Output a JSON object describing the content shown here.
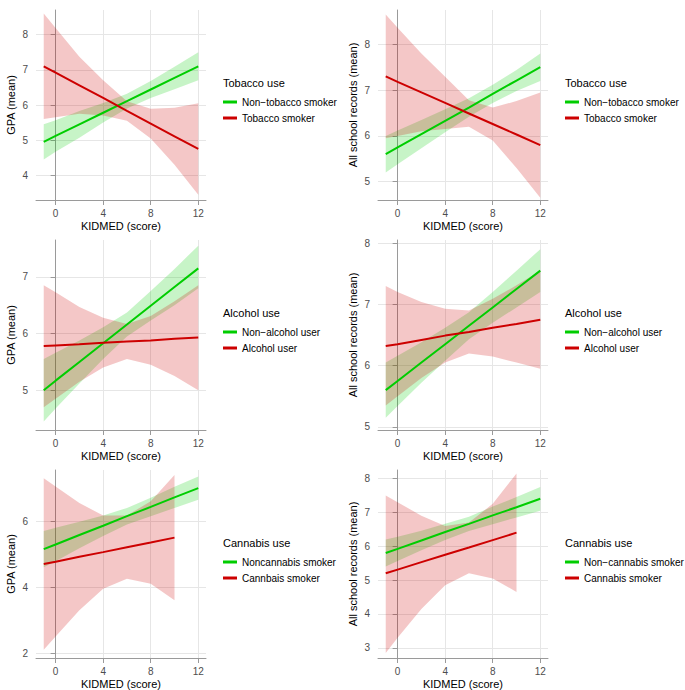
{
  "chart_data": [
    {
      "type": "line",
      "x_label": "KIDMED (score)",
      "y_label": "GPA (mean)",
      "legend_title": "Tobacco use",
      "legend": "right",
      "grid": true,
      "xlim": [
        -1.65,
        12.65
      ],
      "xticks": [
        0,
        4,
        8,
        12
      ],
      "ylim": [
        3.3,
        8.7
      ],
      "yticks": [
        4,
        5,
        6,
        7,
        8
      ],
      "x": [
        -1,
        0,
        2,
        4,
        6,
        8,
        10,
        12
      ],
      "series": [
        {
          "name": "Non−tobacco smoker",
          "color": "#00CD00",
          "values": [
            4.95,
            5.12,
            5.45,
            5.78,
            6.11,
            6.44,
            6.77,
            7.1
          ],
          "lower": [
            4.45,
            4.67,
            5.07,
            5.5,
            5.9,
            6.2,
            6.45,
            6.7
          ],
          "upper": [
            5.45,
            5.57,
            5.83,
            6.06,
            6.32,
            6.68,
            7.09,
            7.5
          ]
        },
        {
          "name": "Tobacco smoker",
          "color": "#CD0000",
          "values": [
            7.1,
            6.92,
            6.56,
            6.2,
            5.83,
            5.47,
            5.11,
            4.75
          ],
          "lower": [
            5.6,
            5.65,
            5.75,
            5.7,
            5.55,
            5.05,
            4.3,
            3.45
          ],
          "upper": [
            8.6,
            8.19,
            7.37,
            6.7,
            6.11,
            5.89,
            5.92,
            6.05
          ]
        }
      ]
    },
    {
      "type": "line",
      "x_label": "KIDMED (score)",
      "y_label": "All school records (mean)",
      "legend_title": "Tobacco use",
      "legend": "right",
      "grid": true,
      "xlim": [
        -1.65,
        12.65
      ],
      "xticks": [
        0,
        4,
        8,
        12
      ],
      "ylim": [
        4.6,
        8.75
      ],
      "yticks": [
        5,
        6,
        7,
        8
      ],
      "x": [
        -1,
        0,
        2,
        4,
        6,
        8,
        10,
        12
      ],
      "series": [
        {
          "name": "Non−tobacco smoker",
          "color": "#00CD00",
          "values": [
            5.6,
            5.75,
            6.04,
            6.33,
            6.62,
            6.92,
            7.21,
            7.5
          ],
          "lower": [
            5.2,
            5.38,
            5.73,
            6.08,
            6.42,
            6.72,
            6.98,
            7.2
          ],
          "upper": [
            6.0,
            6.12,
            6.35,
            6.58,
            6.82,
            7.12,
            7.44,
            7.8
          ]
        },
        {
          "name": "Tobacco smoker",
          "color": "#CD0000",
          "values": [
            7.3,
            7.18,
            6.95,
            6.72,
            6.49,
            6.26,
            6.03,
            5.8
          ],
          "lower": [
            5.95,
            6.0,
            6.1,
            6.15,
            6.2,
            5.9,
            5.3,
            4.65
          ],
          "upper": [
            8.65,
            8.36,
            7.8,
            7.29,
            6.78,
            6.62,
            6.76,
            6.95
          ]
        }
      ]
    },
    {
      "type": "line",
      "x_label": "KIDMED (score)",
      "y_label": "GPA (mean)",
      "legend_title": "Alcohol use",
      "legend": "right",
      "grid": true,
      "xlim": [
        -1.65,
        12.65
      ],
      "xticks": [
        0,
        4,
        8,
        12
      ],
      "ylim": [
        4.3,
        7.65
      ],
      "yticks": [
        5,
        6,
        7
      ],
      "x": [
        -1,
        0,
        2,
        4,
        6,
        8,
        10,
        12
      ],
      "series": [
        {
          "name": "Non−alcohol user",
          "color": "#00CD00",
          "values": [
            5.0,
            5.17,
            5.5,
            5.83,
            6.16,
            6.49,
            6.82,
            7.15
          ],
          "lower": [
            4.45,
            4.68,
            5.12,
            5.55,
            5.95,
            6.23,
            6.5,
            6.8
          ],
          "upper": [
            5.55,
            5.66,
            5.88,
            6.11,
            6.37,
            6.75,
            7.14,
            7.55
          ]
        },
        {
          "name": "Alcohol user",
          "color": "#CD0000",
          "values": [
            5.78,
            5.79,
            5.81,
            5.84,
            5.86,
            5.88,
            5.91,
            5.93
          ],
          "lower": [
            4.7,
            4.85,
            5.15,
            5.4,
            5.55,
            5.45,
            5.25,
            5.0
          ],
          "upper": [
            6.85,
            6.73,
            6.47,
            6.28,
            6.17,
            6.31,
            6.57,
            6.85
          ]
        }
      ]
    },
    {
      "type": "line",
      "x_label": "KIDMED (score)",
      "y_label": "All school records (mean)",
      "legend_title": "Alcohol use",
      "legend": "right",
      "grid": true,
      "xlim": [
        -1.65,
        12.65
      ],
      "xticks": [
        0,
        4,
        8,
        12
      ],
      "ylim": [
        4.95,
        8.05
      ],
      "yticks": [
        5,
        6,
        7,
        8
      ],
      "x": [
        -1,
        0,
        2,
        4,
        6,
        8,
        10,
        12
      ],
      "series": [
        {
          "name": "Non−alcohol user",
          "color": "#00CD00",
          "values": [
            5.6,
            5.75,
            6.05,
            6.35,
            6.65,
            6.95,
            7.25,
            7.55
          ],
          "lower": [
            5.15,
            5.34,
            5.72,
            6.08,
            6.43,
            6.7,
            6.95,
            7.2
          ],
          "upper": [
            6.05,
            6.16,
            6.38,
            6.62,
            6.87,
            7.2,
            7.55,
            7.9
          ]
        },
        {
          "name": "Alcohol user",
          "color": "#CD0000",
          "values": [
            6.32,
            6.35,
            6.42,
            6.49,
            6.55,
            6.62,
            6.68,
            6.75
          ],
          "lower": [
            5.35,
            5.5,
            5.8,
            6.05,
            6.2,
            6.15,
            6.05,
            5.95
          ],
          "upper": [
            7.3,
            7.2,
            7.04,
            6.93,
            6.9,
            7.09,
            7.31,
            7.55
          ]
        }
      ]
    },
    {
      "type": "line",
      "x_label": "KIDMED (score)",
      "y_label": "GPA (mean)",
      "legend_title": "Cannabis use",
      "legend": "right",
      "grid": true,
      "xlim": [
        -1.65,
        12.65
      ],
      "xticks": [
        0,
        4,
        8,
        12
      ],
      "ylim": [
        1.85,
        7.55
      ],
      "yticks": [
        2,
        4,
        6
      ],
      "x": [
        -1,
        0,
        2,
        4,
        6,
        8,
        10,
        12
      ],
      "series": [
        {
          "name": "Noncannabis smoker",
          "color": "#00CD00",
          "values": [
            5.15,
            5.29,
            5.58,
            5.86,
            6.15,
            6.43,
            6.72,
            7.0
          ],
          "lower": [
            4.6,
            4.78,
            5.18,
            5.55,
            5.9,
            6.15,
            6.4,
            6.65
          ],
          "upper": [
            5.7,
            5.8,
            5.98,
            6.17,
            6.4,
            6.71,
            7.04,
            7.35
          ]
        },
        {
          "name": "Cannbais smoker",
          "color": "#CD0000",
          "values": [
            4.7,
            4.77,
            4.92,
            5.06,
            5.21,
            5.35,
            5.5,
            null
          ],
          "lower": [
            2.1,
            2.5,
            3.3,
            3.95,
            4.25,
            4.1,
            3.6,
            null
          ],
          "upper": [
            7.3,
            7.05,
            6.55,
            6.17,
            6.17,
            6.6,
            7.4,
            null
          ]
        }
      ]
    },
    {
      "type": "line",
      "x_label": "KIDMED (score)",
      "y_label": "All school records (mean)",
      "legend_title": "Cannabis use",
      "legend": "right",
      "grid": true,
      "xlim": [
        -1.65,
        12.65
      ],
      "xticks": [
        0,
        4,
        8,
        12
      ],
      "ylim": [
        2.7,
        8.25
      ],
      "yticks": [
        3,
        4,
        5,
        6,
        7,
        8
      ],
      "x": [
        -1,
        0,
        2,
        4,
        6,
        8,
        10,
        12
      ],
      "series": [
        {
          "name": "Non−cannabis smoker",
          "color": "#00CD00",
          "values": [
            5.8,
            5.92,
            6.17,
            6.42,
            6.66,
            6.91,
            7.15,
            7.4
          ],
          "lower": [
            5.4,
            5.56,
            5.88,
            6.18,
            6.45,
            6.65,
            6.85,
            7.05
          ],
          "upper": [
            6.2,
            6.28,
            6.46,
            6.66,
            6.87,
            7.17,
            7.45,
            7.75
          ]
        },
        {
          "name": "Cannabis smoker",
          "color": "#CD0000",
          "values": [
            5.2,
            5.31,
            5.53,
            5.75,
            5.96,
            6.18,
            6.4,
            null
          ],
          "lower": [
            2.85,
            3.3,
            4.15,
            4.85,
            5.2,
            5.05,
            4.65,
            null
          ],
          "upper": [
            7.5,
            7.3,
            6.9,
            6.6,
            6.7,
            7.25,
            8.15,
            null
          ]
        }
      ]
    }
  ]
}
